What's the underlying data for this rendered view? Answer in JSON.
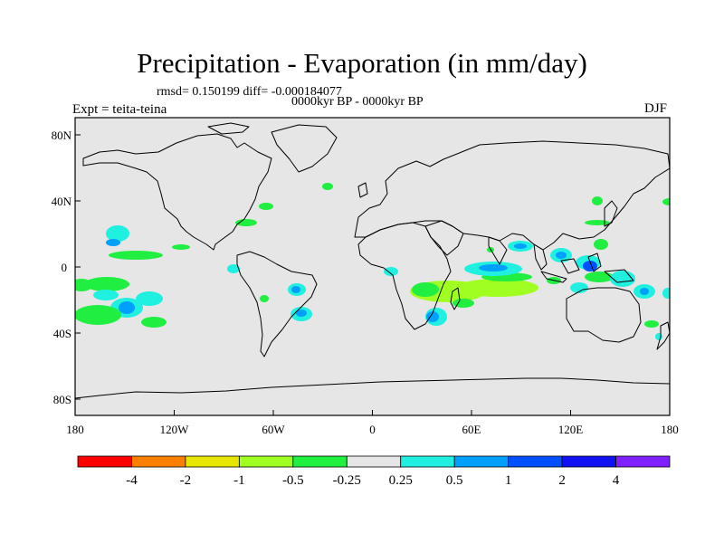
{
  "title": "Precipitation - Evaporation (in mm/day)",
  "stats": "rmsd= 0.150199 diff= -0.000184077",
  "period": "0000kyr BP - 0000kyr BP",
  "expt": "Expt = teita-teina",
  "season": "DJF",
  "lat_ticks": [
    "80N",
    "40N",
    "0",
    "40S",
    "80S"
  ],
  "lon_ticks": [
    "180",
    "120W",
    "60W",
    "0",
    "60E",
    "120E",
    "180"
  ],
  "colorbar": {
    "colors": [
      "#ff0000",
      "#ff8000",
      "#e6e600",
      "#a0ff20",
      "#20f040",
      "#e6e6e6",
      "#20f0e0",
      "#00a0ff",
      "#0050ff",
      "#1010f0",
      "#8020ff"
    ],
    "labels": [
      "-4",
      "-2",
      "-1",
      "-0.5",
      "-0.25",
      "0.25",
      "0.5",
      "1",
      "2",
      "4"
    ]
  },
  "colors": {
    "ocean": "#e6e6e6",
    "green": "#20ee40",
    "lime": "#a0ff20",
    "cyan": "#20f0e0",
    "blue": "#00a0ff",
    "darkblue": "#0050ff"
  }
}
